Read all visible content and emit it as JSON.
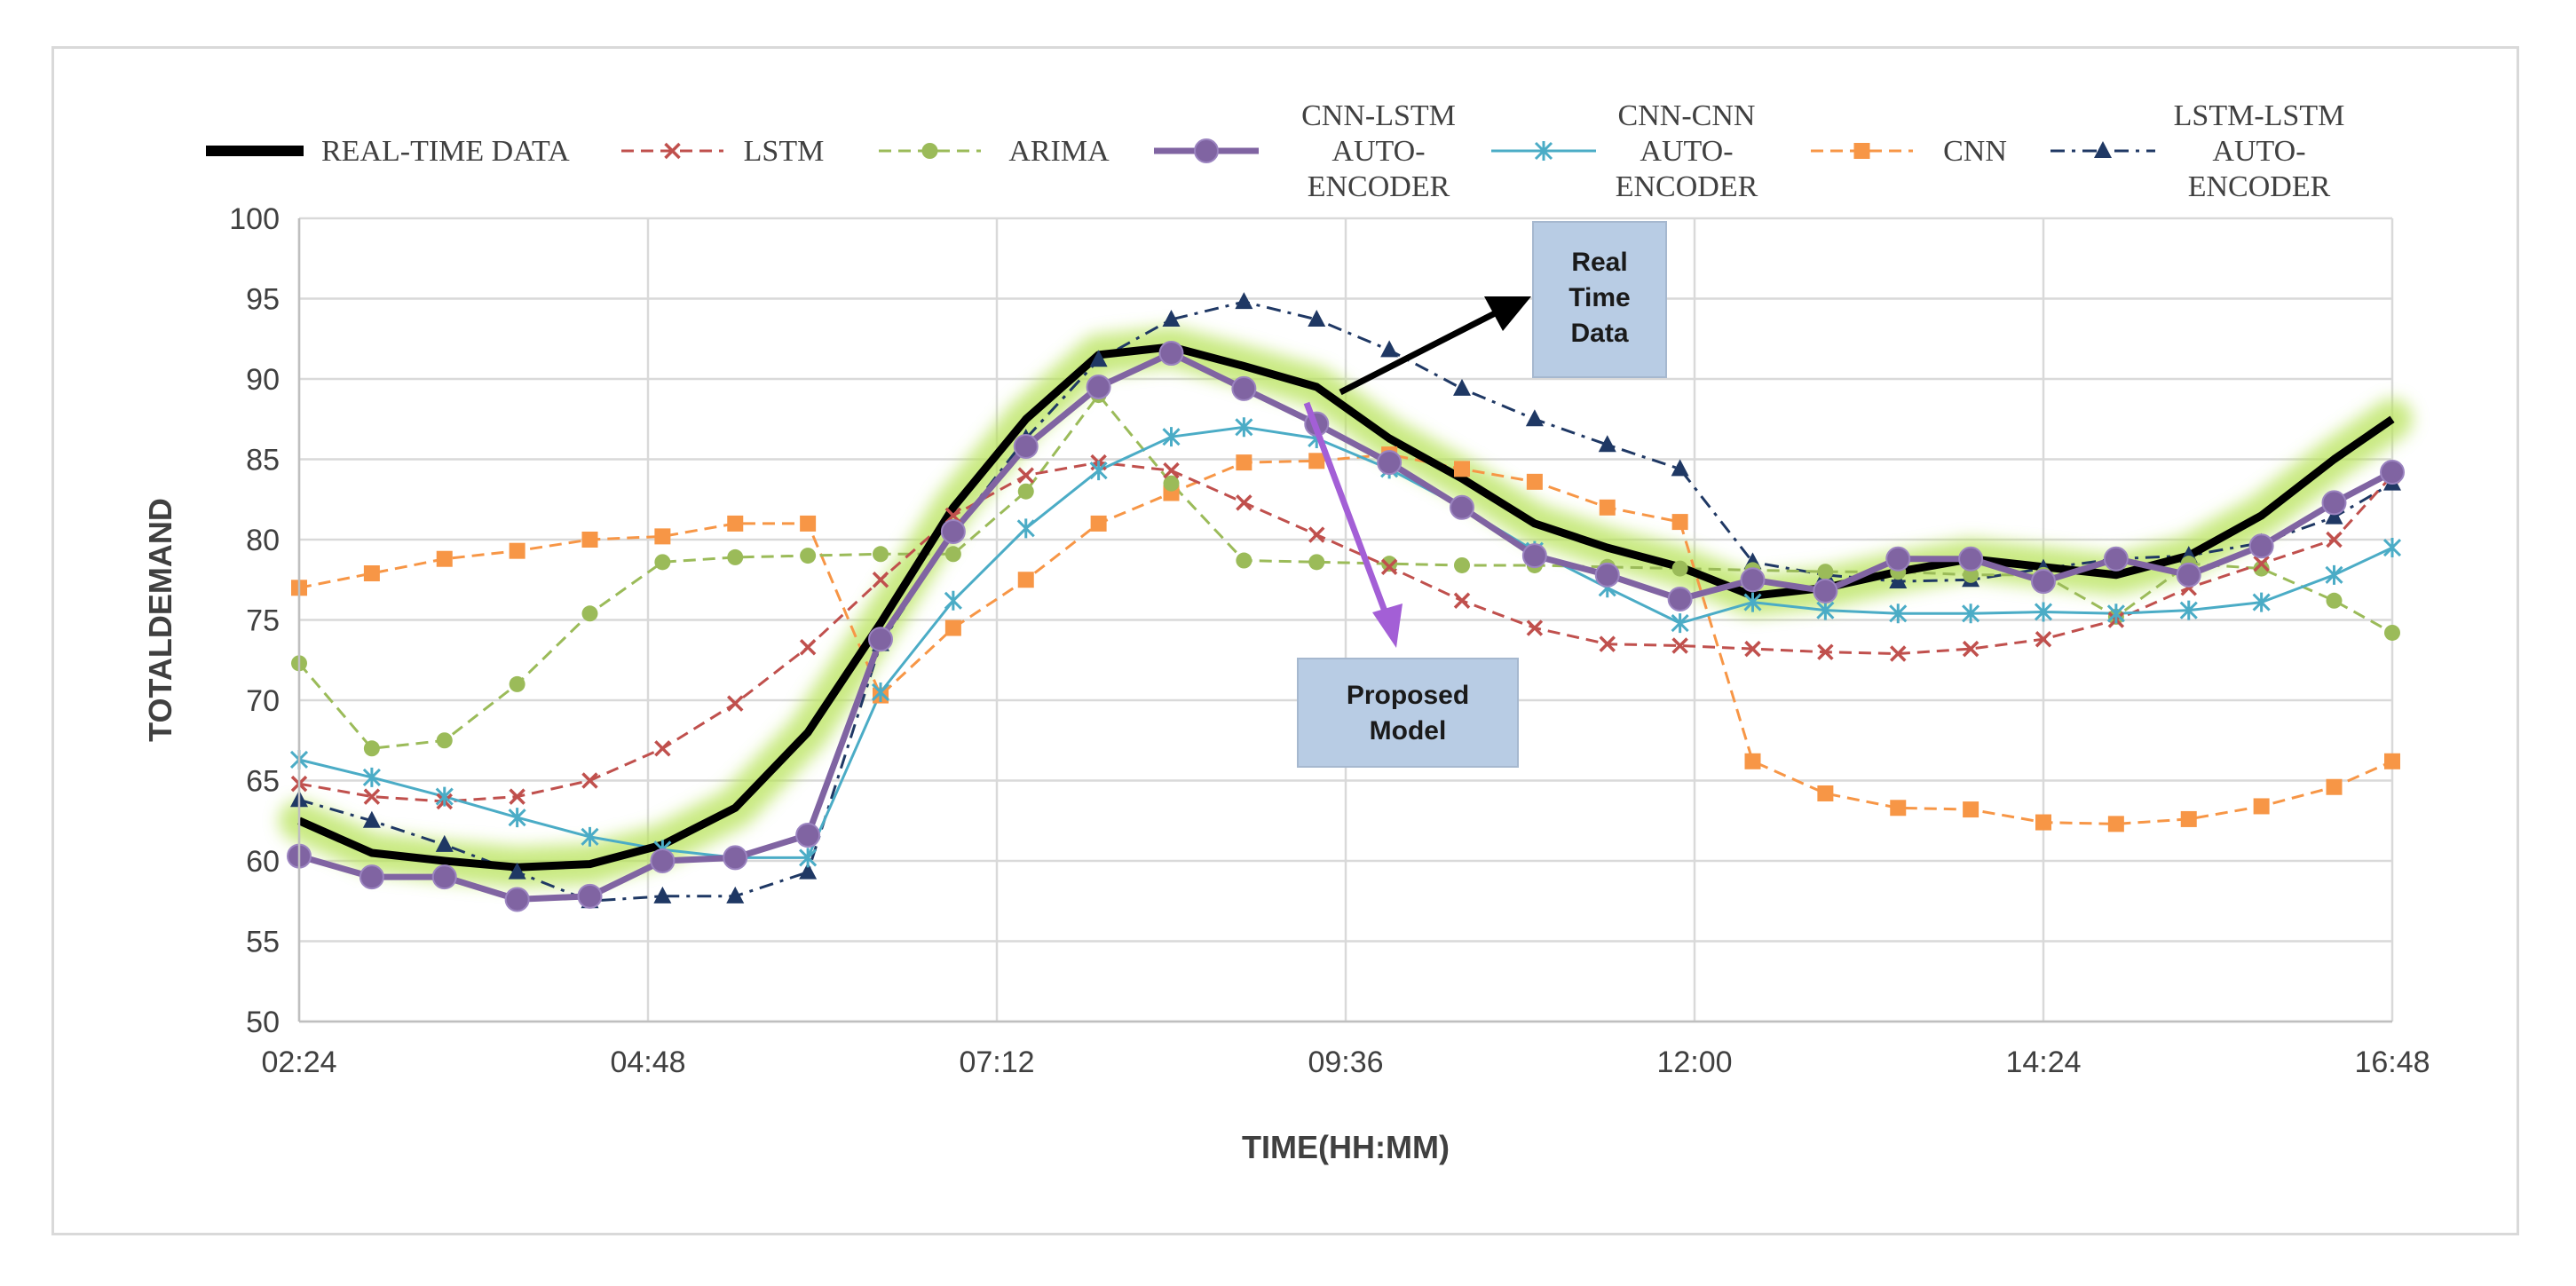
{
  "chart_data": {
    "type": "line",
    "title": "",
    "xlabel": "TIME(HH:MM)",
    "ylabel": "TOTALDEMAND",
    "ylim": [
      50,
      100
    ],
    "yticks": [
      50,
      55,
      60,
      65,
      70,
      75,
      80,
      85,
      90,
      95,
      100
    ],
    "xlim": [
      2.4,
      16.8
    ],
    "xticks": [
      {
        "value": 2.4,
        "label": "02:24"
      },
      {
        "value": 4.8,
        "label": "04:48"
      },
      {
        "value": 7.2,
        "label": "07:12"
      },
      {
        "value": 9.6,
        "label": "09:36"
      },
      {
        "value": 12.0,
        "label": "12:00"
      },
      {
        "value": 14.4,
        "label": "14:24"
      },
      {
        "value": 16.8,
        "label": "16:48"
      }
    ],
    "x": [
      2.4,
      2.9,
      3.4,
      3.9,
      4.4,
      4.9,
      5.4,
      5.9,
      6.4,
      6.9,
      7.4,
      7.9,
      8.4,
      8.9,
      9.4,
      9.9,
      10.4,
      10.9,
      11.4,
      11.9,
      12.4,
      12.9,
      13.4,
      13.9,
      14.4,
      14.9,
      15.4,
      15.9,
      16.4,
      16.8
    ],
    "series": [
      {
        "name": "REAL-TIME DATA",
        "legend_lines": [
          "REAL-TIME DATA"
        ],
        "color": "#000000",
        "style": "solid",
        "marker": "none",
        "width": 9,
        "glow": true,
        "values": [
          62.5,
          60.5,
          60,
          59.6,
          59.8,
          61,
          63.3,
          68,
          74.8,
          82,
          87.5,
          91.5,
          92,
          90.8,
          89.5,
          86.3,
          83.8,
          81,
          79.5,
          78.3,
          76.5,
          77,
          78,
          78.8,
          78.3,
          77.8,
          79,
          81.5,
          85,
          87.5
        ]
      },
      {
        "name": "LSTM",
        "legend_lines": [
          "LSTM"
        ],
        "color": "#c0504d",
        "style": "dash",
        "marker": "x",
        "width": 3,
        "glow": false,
        "values": [
          64.8,
          64,
          63.7,
          64,
          65,
          67,
          69.8,
          73.3,
          77.5,
          81.5,
          84,
          84.8,
          84.3,
          82.3,
          80.3,
          78.3,
          76.2,
          74.5,
          73.5,
          73.4,
          73.2,
          73,
          72.9,
          73.2,
          73.8,
          75,
          77,
          78.5,
          80,
          84
        ]
      },
      {
        "name": "ARIMA",
        "legend_lines": [
          "ARIMA"
        ],
        "color": "#9bbb59",
        "style": "dash",
        "marker": "circle",
        "width": 3,
        "glow": false,
        "values": [
          72.3,
          67,
          67.5,
          71,
          75.4,
          78.6,
          78.9,
          79,
          79.1,
          79.1,
          83,
          89,
          83.5,
          78.7,
          78.6,
          78.5,
          78.4,
          78.4,
          78.3,
          78.2,
          78.1,
          78,
          78,
          77.8,
          77.8,
          75.2,
          78.5,
          78.2,
          76.2,
          74.2
        ]
      },
      {
        "name": "CNN-LSTM AUTO-ENCODER",
        "legend_lines": [
          "CNN-LSTM",
          "AUTO-",
          "ENCODER"
        ],
        "color": "#8064a2",
        "style": "solid",
        "marker": "circle-big",
        "width": 7,
        "glow": false,
        "values": [
          60.3,
          59,
          59,
          57.6,
          57.8,
          60,
          60.2,
          61.6,
          73.8,
          80.5,
          85.8,
          89.5,
          91.6,
          89.4,
          87.2,
          84.8,
          82,
          79,
          77.8,
          76.3,
          77.5,
          76.8,
          78.8,
          78.8,
          77.4,
          78.8,
          77.8,
          79.6,
          82.3,
          84.2
        ]
      },
      {
        "name": "CNN-CNN AUTO-ENCODER",
        "legend_lines": [
          "CNN-CNN",
          "AUTO-",
          "ENCODER"
        ],
        "color": "#4bacc6",
        "style": "solid",
        "marker": "star",
        "width": 3,
        "glow": false,
        "values": [
          66.3,
          65.2,
          64,
          62.7,
          61.5,
          60.7,
          60.2,
          60.2,
          70.5,
          76.2,
          80.7,
          84.3,
          86.4,
          87,
          86.3,
          84.4,
          82,
          79.3,
          77,
          74.8,
          76.1,
          75.6,
          75.4,
          75.4,
          75.5,
          75.4,
          75.6,
          76.1,
          77.8,
          79.5
        ]
      },
      {
        "name": "CNN",
        "legend_lines": [
          "CNN"
        ],
        "color": "#f79646",
        "style": "dash",
        "marker": "square",
        "width": 3,
        "glow": false,
        "values": [
          77,
          77.9,
          78.8,
          79.3,
          80,
          80.2,
          81,
          81,
          70.3,
          74.5,
          77.5,
          81,
          82.9,
          84.8,
          84.9,
          85.3,
          84.4,
          83.6,
          82,
          81.1,
          66.2,
          64.2,
          63.3,
          63.2,
          62.4,
          62.3,
          62.6,
          63.4,
          64.6,
          66.2
        ]
      },
      {
        "name": "LSTM-LSTM AUTO-ENCODER",
        "legend_lines": [
          "LSTM-LSTM",
          "AUTO-",
          "ENCODER"
        ],
        "color": "#1f3864",
        "style": "dashdot",
        "marker": "triangle",
        "width": 3,
        "glow": false,
        "values": [
          63.8,
          62.5,
          61,
          59.3,
          57.5,
          57.8,
          57.8,
          59.3,
          73.5,
          80.5,
          86.3,
          91.2,
          93.7,
          94.8,
          93.7,
          91.8,
          89.4,
          87.5,
          85.9,
          84.4,
          78.6,
          77.8,
          77.4,
          77.5,
          78.2,
          78.8,
          79,
          79.8,
          81.4,
          83.5
        ]
      }
    ],
    "annotations": [
      {
        "text_lines": [
          "Real",
          "Time",
          "Data"
        ],
        "points_to": "REAL-TIME DATA"
      },
      {
        "text_lines": [
          "Proposed",
          "Model"
        ],
        "points_to": "CNN-LSTM AUTO-ENCODER"
      }
    ],
    "grid": true,
    "legend": "top"
  }
}
